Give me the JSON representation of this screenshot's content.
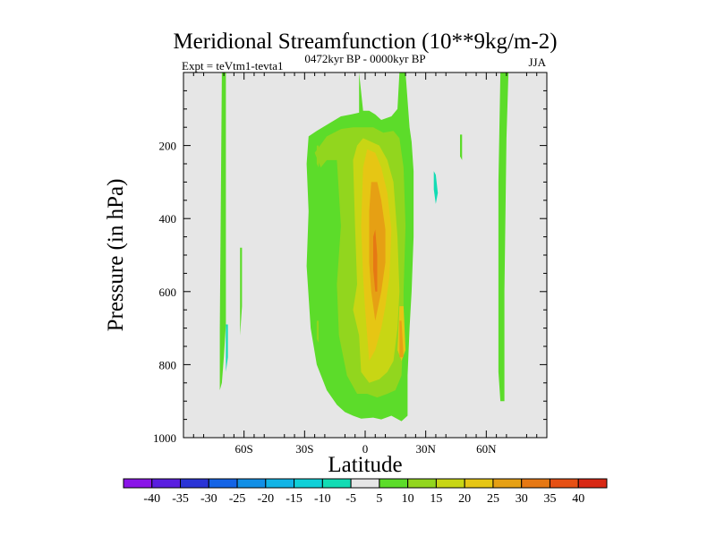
{
  "chart_data": {
    "type": "contour",
    "title": "Meridional Streamfunction (10**9kg/m-2)",
    "left_label": "Expt = teVtm1-tevta1",
    "center_label": "0472kyr BP - 0000kyr BP",
    "right_label": "JJA",
    "xlabel": "Latitude",
    "ylabel": "Pressure (in hPa)",
    "xlim": [
      -90,
      90
    ],
    "ylim": [
      1000,
      0
    ],
    "x_ticks": [
      {
        "value": -60,
        "label": "60S"
      },
      {
        "value": -30,
        "label": "30S"
      },
      {
        "value": 0,
        "label": "0"
      },
      {
        "value": 30,
        "label": "30N"
      },
      {
        "value": 60,
        "label": "60N"
      }
    ],
    "y_ticks": [
      {
        "value": 200,
        "label": "200"
      },
      {
        "value": 400,
        "label": "400"
      },
      {
        "value": 600,
        "label": "600"
      },
      {
        "value": 800,
        "label": "800"
      },
      {
        "value": 1000,
        "label": "1000"
      }
    ],
    "background_color": "#e6e6e6",
    "colorbar": {
      "labels": [
        "-40",
        "-35",
        "-30",
        "-25",
        "-20",
        "-15",
        "-10",
        "-5",
        "5",
        "10",
        "15",
        "20",
        "25",
        "30",
        "35",
        "40"
      ],
      "colors": [
        "#8a14e8",
        "#5a1ee0",
        "#2a34d6",
        "#1464e6",
        "#128fe6",
        "#12b4e6",
        "#0fd0d8",
        "#12dcb4",
        "#e6e6e6",
        "#5cdc2a",
        "#92d61e",
        "#c8d614",
        "#e6c614",
        "#e6a014",
        "#e67814",
        "#e65014",
        "#d82814"
      ]
    },
    "regions": [
      {
        "level": 5,
        "points": [
          [
            -71,
            0
          ],
          [
            -69,
            0
          ],
          [
            -69,
            690
          ],
          [
            -70,
            780
          ],
          [
            -71,
            850
          ],
          [
            -72,
            870
          ],
          [
            -72,
            700
          ]
        ]
      },
      {
        "level": 5,
        "points": [
          [
            67,
            0
          ],
          [
            71,
            0
          ],
          [
            70,
            180
          ],
          [
            69,
            600
          ],
          [
            69,
            900
          ],
          [
            67,
            900
          ],
          [
            66,
            820
          ],
          [
            66,
            600
          ],
          [
            66,
            300
          ]
        ]
      },
      {
        "level": 5,
        "points": [
          [
            -3,
            0
          ],
          [
            -3,
            110
          ],
          [
            -7,
            115
          ],
          [
            -12,
            120
          ],
          [
            -18,
            140
          ],
          [
            -24,
            160
          ],
          [
            -28,
            175
          ],
          [
            -29,
            250
          ],
          [
            -28,
            380
          ],
          [
            -29,
            530
          ],
          [
            -27,
            700
          ],
          [
            -24,
            800
          ],
          [
            -19,
            870
          ],
          [
            -14,
            910
          ],
          [
            -10,
            930
          ],
          [
            -6,
            940
          ],
          [
            -2,
            948
          ],
          [
            4,
            945
          ],
          [
            8,
            950
          ],
          [
            13,
            940
          ],
          [
            18,
            955
          ],
          [
            21,
            940
          ],
          [
            21,
            830
          ],
          [
            22,
            700
          ],
          [
            23,
            600
          ],
          [
            24,
            450
          ],
          [
            24,
            270
          ],
          [
            23,
            190
          ],
          [
            22,
            150
          ],
          [
            20,
            0
          ],
          [
            17,
            0
          ],
          [
            16,
            100
          ],
          [
            13,
            120
          ],
          [
            8,
            130
          ],
          [
            5,
            115
          ],
          [
            2,
            105
          ],
          [
            -1,
            105
          ]
        ]
      },
      {
        "level": 5,
        "points": [
          [
            -62,
            480
          ],
          [
            -61,
            480
          ],
          [
            -61,
            640
          ],
          [
            -62,
            720
          ]
        ]
      },
      {
        "level": 5,
        "points": [
          [
            47,
            170
          ],
          [
            48,
            170
          ],
          [
            48,
            240
          ],
          [
            47,
            230
          ]
        ]
      },
      {
        "level": 10,
        "points": [
          [
            -6,
            150
          ],
          [
            -12,
            155
          ],
          [
            -19,
            175
          ],
          [
            -25,
            220
          ],
          [
            -22,
            260
          ],
          [
            -19,
            240
          ],
          [
            -14,
            240
          ],
          [
            -12,
            420
          ],
          [
            -14,
            580
          ],
          [
            -13,
            720
          ],
          [
            -9,
            830
          ],
          [
            -4,
            880
          ],
          [
            1,
            880
          ],
          [
            6,
            890
          ],
          [
            11,
            880
          ],
          [
            15,
            870
          ],
          [
            18,
            830
          ],
          [
            19,
            700
          ],
          [
            19,
            600
          ],
          [
            20,
            420
          ],
          [
            19,
            260
          ],
          [
            17,
            180
          ],
          [
            14,
            160
          ],
          [
            9,
            165
          ],
          [
            4,
            150
          ],
          [
            0,
            150
          ]
        ]
      },
      {
        "level": 10,
        "points": [
          [
            -24,
            200
          ],
          [
            -23,
            200
          ],
          [
            -23,
            260
          ],
          [
            -24,
            250
          ]
        ]
      },
      {
        "level": 10,
        "points": [
          [
            -24,
            680
          ],
          [
            -23,
            680
          ],
          [
            -23,
            740
          ],
          [
            -24,
            730
          ]
        ]
      },
      {
        "level": 15,
        "points": [
          [
            -1,
            180
          ],
          [
            -4,
            200
          ],
          [
            -6,
            240
          ],
          [
            -5,
            420
          ],
          [
            -4,
            580
          ],
          [
            -6,
            650
          ],
          [
            -3,
            720
          ],
          [
            -2,
            820
          ],
          [
            2,
            850
          ],
          [
            7,
            840
          ],
          [
            11,
            820
          ],
          [
            14,
            790
          ],
          [
            16,
            700
          ],
          [
            17,
            600
          ],
          [
            16,
            450
          ],
          [
            14,
            300
          ],
          [
            11,
            240
          ],
          [
            7,
            200
          ],
          [
            3,
            190
          ]
        ]
      },
      {
        "level": 20,
        "points": [
          [
            1,
            210
          ],
          [
            -1,
            260
          ],
          [
            -2,
            420
          ],
          [
            -1,
            560
          ],
          [
            0,
            650
          ],
          [
            2,
            790
          ],
          [
            5,
            760
          ],
          [
            8,
            700
          ],
          [
            10,
            640
          ],
          [
            12,
            560
          ],
          [
            13,
            430
          ],
          [
            11,
            330
          ],
          [
            8,
            260
          ],
          [
            5,
            220
          ]
        ]
      },
      {
        "level": 20,
        "points": [
          [
            17,
            640
          ],
          [
            19,
            640
          ],
          [
            20,
            760
          ],
          [
            18,
            790
          ],
          [
            16,
            760
          ]
        ]
      },
      {
        "level": 25,
        "points": [
          [
            3,
            300
          ],
          [
            2,
            380
          ],
          [
            2,
            520
          ],
          [
            3,
            600
          ],
          [
            5,
            680
          ],
          [
            8,
            600
          ],
          [
            10,
            520
          ],
          [
            10,
            430
          ],
          [
            8,
            350
          ],
          [
            6,
            300
          ]
        ]
      },
      {
        "level": 25,
        "points": [
          [
            17,
            680
          ],
          [
            18,
            680
          ],
          [
            19,
            780
          ],
          [
            17,
            780
          ]
        ]
      },
      {
        "level": 30,
        "points": [
          [
            4,
            450
          ],
          [
            4,
            540
          ],
          [
            5,
            600
          ],
          [
            6,
            600
          ],
          [
            6,
            500
          ],
          [
            5,
            430
          ]
        ]
      },
      {
        "level": -5,
        "points": [
          [
            -69,
            690
          ],
          [
            -68,
            690
          ],
          [
            -68,
            780
          ],
          [
            -69,
            820
          ],
          [
            -69,
            750
          ]
        ]
      },
      {
        "level": -5,
        "points": [
          [
            34,
            270
          ],
          [
            35,
            280
          ],
          [
            36,
            330
          ],
          [
            35,
            360
          ],
          [
            34,
            320
          ]
        ]
      }
    ]
  }
}
